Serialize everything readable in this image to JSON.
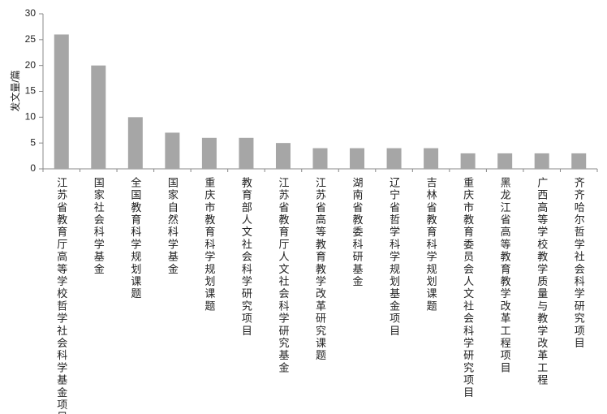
{
  "chart_data": {
    "type": "bar",
    "y_label": "发文量/篇",
    "categories": [
      "江苏省教育厅高等学校哲学社会科学基金项目",
      "国家社会科学基金",
      "全国教育科学规划课题",
      "国家自然科学基金",
      "重庆市教育科学规划课题",
      "教育部人文社会科学研究项目",
      "江苏省教育厅人文社会科学研究基金",
      "江苏省高等教育教学改革研究课题",
      "湖南省教委科研基金",
      "辽宁省哲学科学规划基金项目",
      "吉林省教育科学规划课题",
      "重庆市教育委员会人文社会科学研究项目",
      "黑龙江省高等教育教学改革工程项目",
      "广西高等学校教学质量与教学改革工程",
      "齐齐哈尔哲学社会科学研究项目"
    ],
    "values": [
      26,
      20,
      10,
      7,
      6,
      6,
      5,
      4,
      4,
      4,
      4,
      3,
      3,
      3,
      3
    ],
    "color": "#a6a6a6",
    "ylim": [
      0,
      30
    ],
    "yticks": [
      0,
      5,
      10,
      15,
      20,
      25,
      30
    ],
    "grid": false
  }
}
